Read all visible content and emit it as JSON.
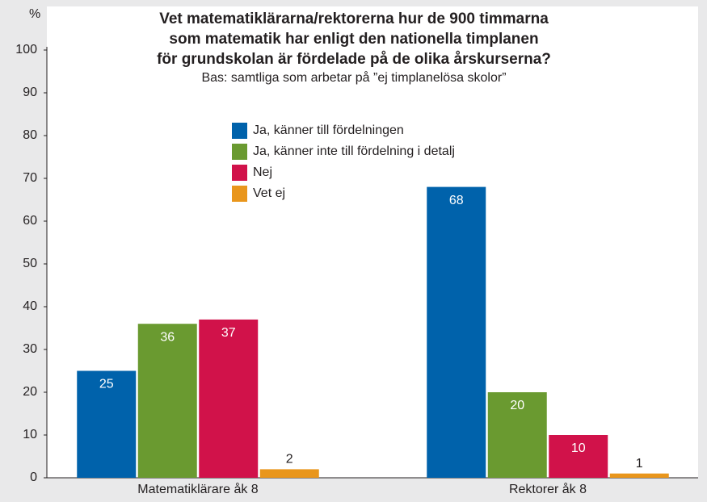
{
  "chart_data": {
    "type": "bar",
    "title": [
      "Vet matematiklärarna/rektorerna hur de 900 timmarna",
      "som matematik har enligt den nationella timplanen",
      "för grundskolan är fördelade på de olika årskurserna?"
    ],
    "subtitle": "Bas: samtliga som arbetar på ”ej timplanelösa skolor”",
    "y_label": "%",
    "categories": [
      "Matematiklärare åk 8",
      "Rektorer åk 8"
    ],
    "series": [
      {
        "name": "Ja, känner till fördelningen",
        "color": "#0062ab",
        "values": [
          25,
          68
        ]
      },
      {
        "name": "Ja, känner inte till fördelning i detalj",
        "color": "#6a9a30",
        "values": [
          36,
          20
        ]
      },
      {
        "name": "Nej",
        "color": "#d1124a",
        "values": [
          37,
          10
        ]
      },
      {
        "name": "Vet ej",
        "color": "#e9961c",
        "values": [
          2,
          1
        ]
      }
    ],
    "ylim": [
      0,
      100
    ],
    "yticks": [
      0,
      10,
      20,
      30,
      40,
      50,
      60,
      70,
      80,
      90,
      100
    ]
  }
}
